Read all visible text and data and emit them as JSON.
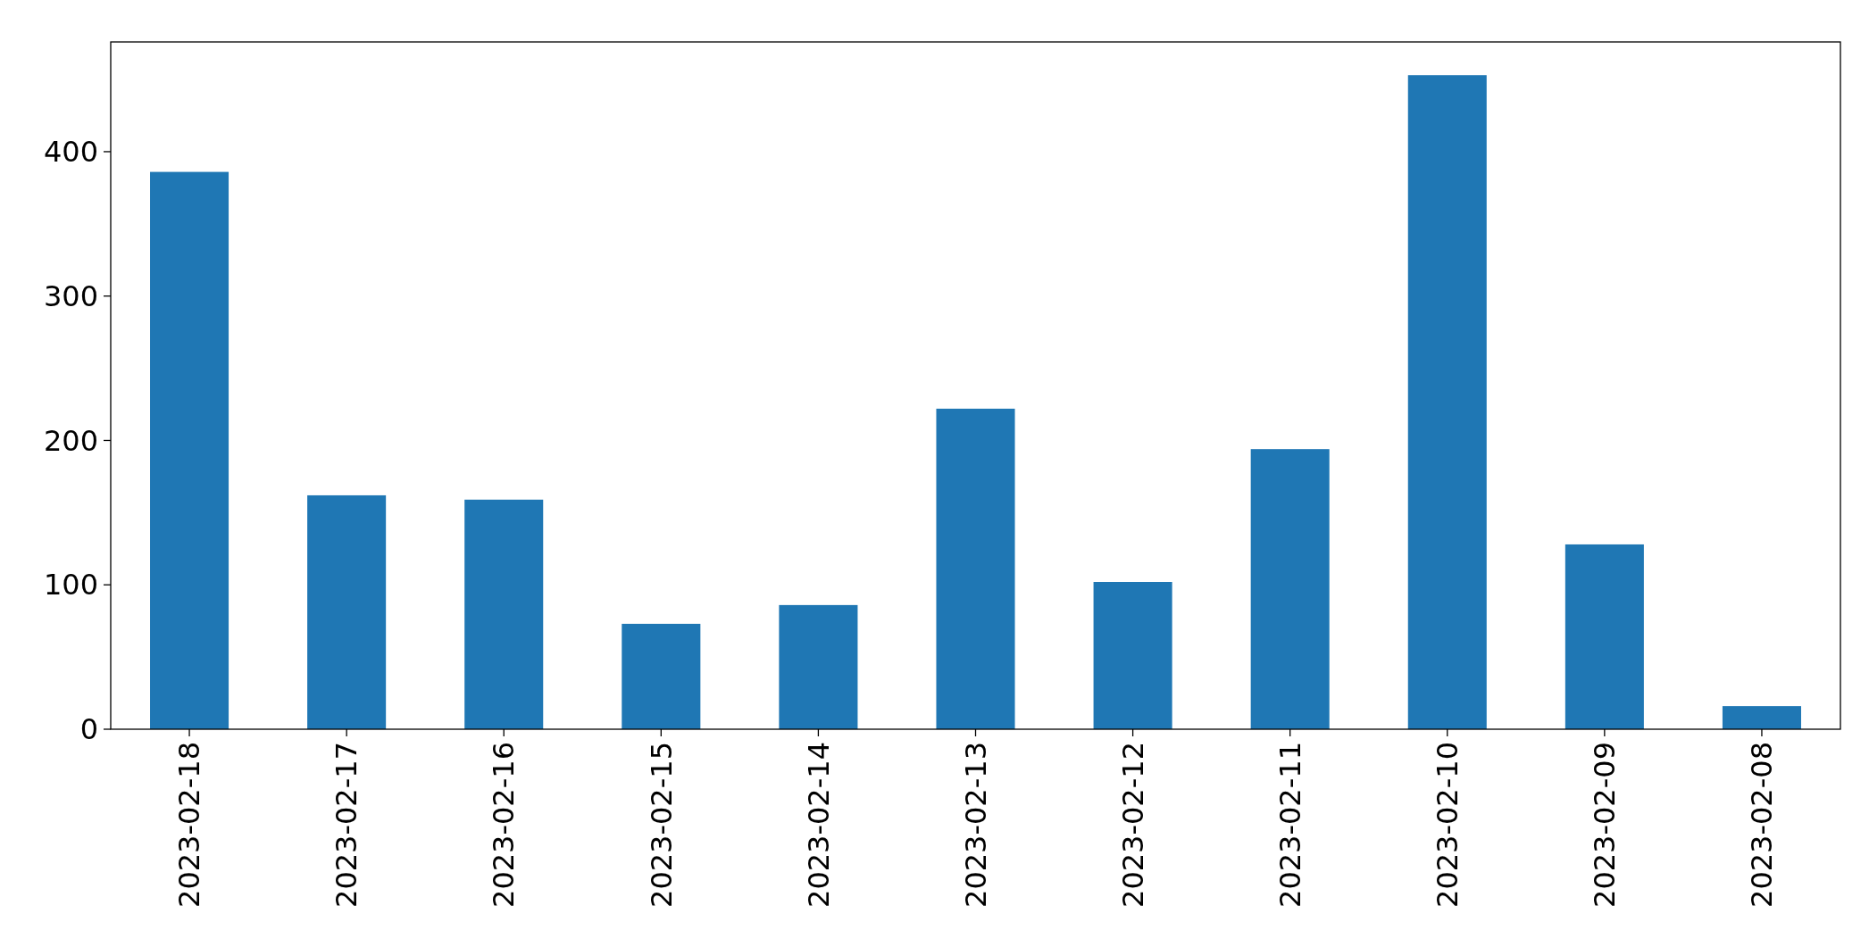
{
  "chart_data": {
    "type": "bar",
    "categories": [
      "2023-02-18",
      "2023-02-17",
      "2023-02-16",
      "2023-02-15",
      "2023-02-14",
      "2023-02-13",
      "2023-02-12",
      "2023-02-11",
      "2023-02-10",
      "2023-02-09",
      "2023-02-08"
    ],
    "values": [
      386,
      162,
      159,
      73,
      86,
      222,
      102,
      194,
      453,
      128,
      16
    ],
    "color": "#1f77b4",
    "ylim": [
      0,
      476
    ],
    "yticks": [
      0,
      100,
      200,
      300,
      400
    ],
    "grid": false
  }
}
